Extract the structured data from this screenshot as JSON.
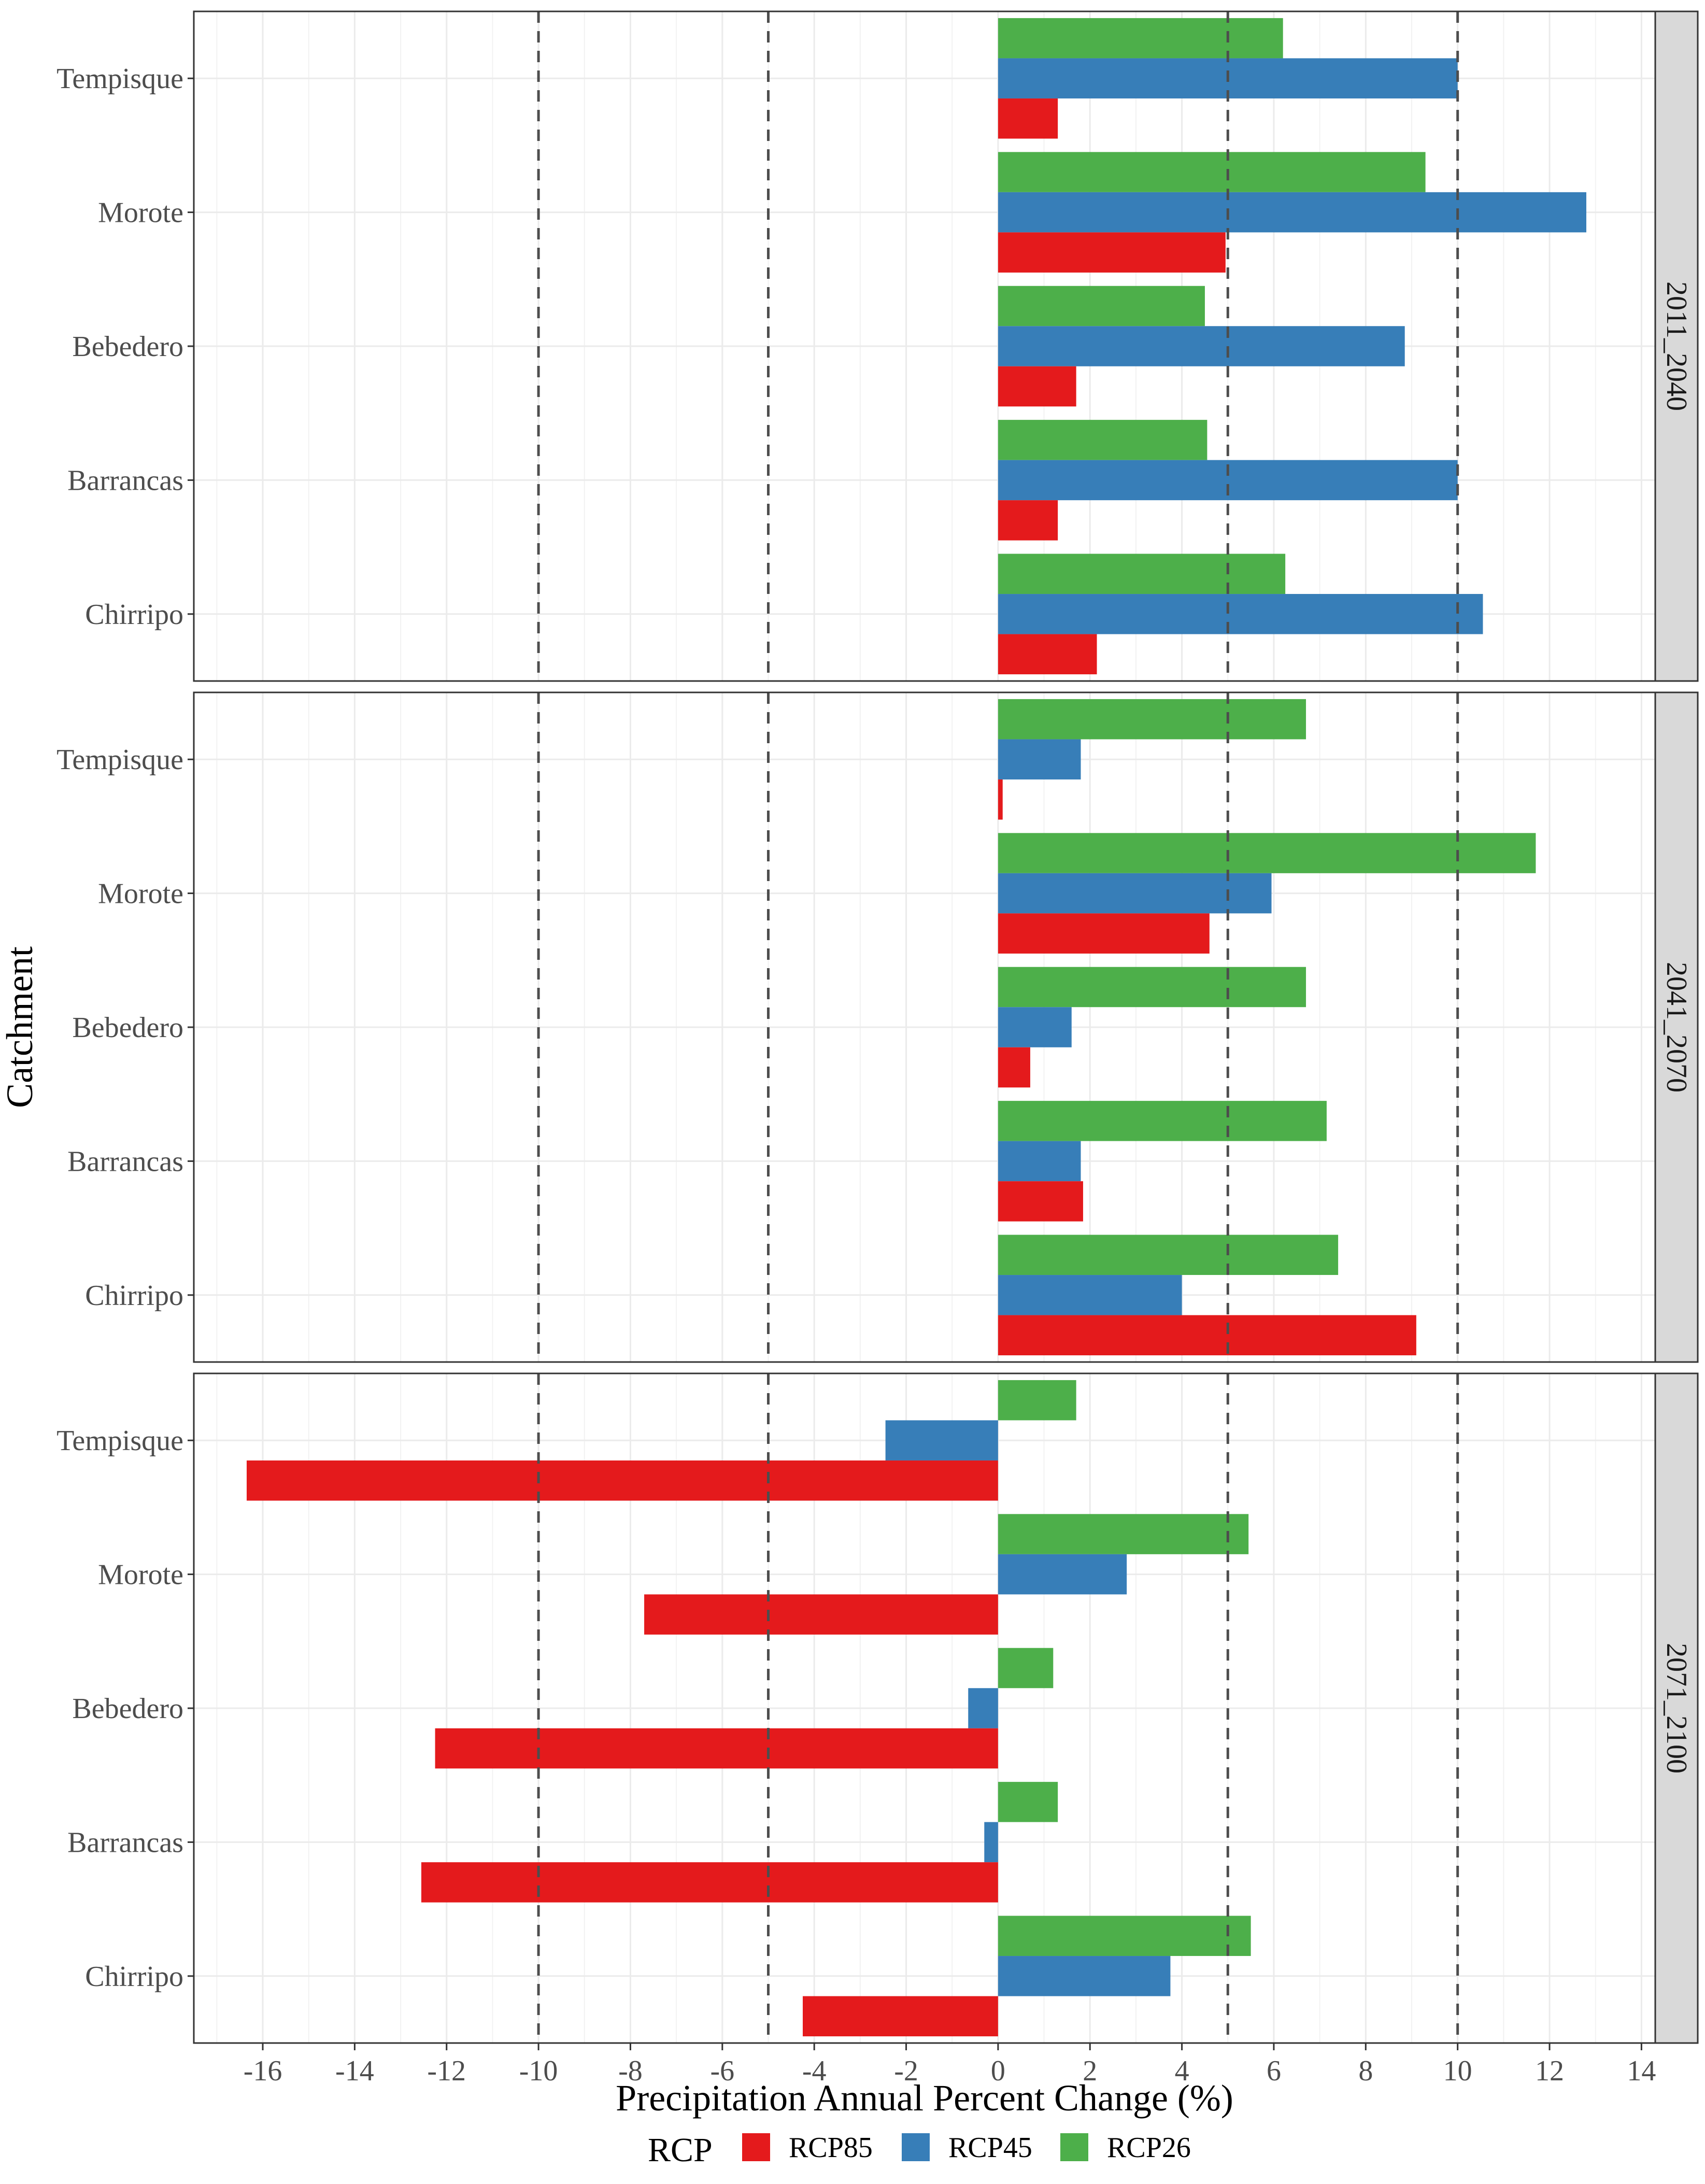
{
  "chart_data": {
    "type": "bar",
    "orientation": "horizontal",
    "title": "",
    "xlabel": "Precipitation Annual Percent Change (%)",
    "ylabel": "Catchment",
    "xlim": [
      -17.5,
      14.3
    ],
    "xticks": [
      -16,
      -14,
      -12,
      -10,
      -8,
      -6,
      -4,
      -2,
      0,
      2,
      4,
      6,
      8,
      10,
      12,
      14
    ],
    "reference_lines": [
      -10,
      -5,
      5,
      10
    ],
    "categories": [
      "Tempisque",
      "Morote",
      "Bebedero",
      "Barrancas",
      "Chirripo"
    ],
    "legend": {
      "title": "RCP",
      "position": "bottom",
      "entries": [
        {
          "name": "RCP85",
          "color": "#e41a1c"
        },
        {
          "name": "RCP45",
          "color": "#377eb8"
        },
        {
          "name": "RCP26",
          "color": "#4daf4a"
        }
      ]
    },
    "panels": [
      {
        "label": "2011_2040",
        "series": [
          {
            "name": "RCP26",
            "values": [
              6.2,
              9.3,
              4.5,
              4.55,
              6.25
            ]
          },
          {
            "name": "RCP45",
            "values": [
              10.0,
              12.8,
              8.85,
              10.0,
              10.55
            ]
          },
          {
            "name": "RCP85",
            "values": [
              1.3,
              4.95,
              1.7,
              1.3,
              2.15
            ]
          }
        ]
      },
      {
        "label": "2041_2070",
        "series": [
          {
            "name": "RCP26",
            "values": [
              6.7,
              11.7,
              6.7,
              7.15,
              7.4
            ]
          },
          {
            "name": "RCP45",
            "values": [
              1.8,
              5.95,
              1.6,
              1.8,
              4.0
            ]
          },
          {
            "name": "RCP85",
            "values": [
              0.1,
              4.6,
              0.7,
              1.85,
              9.1
            ]
          }
        ]
      },
      {
        "label": "2071_2100",
        "series": [
          {
            "name": "RCP26",
            "values": [
              1.7,
              5.45,
              1.2,
              1.3,
              5.5
            ]
          },
          {
            "name": "RCP45",
            "values": [
              -2.45,
              2.8,
              -0.65,
              -0.3,
              3.75
            ]
          },
          {
            "name": "RCP85",
            "values": [
              -16.35,
              -7.7,
              -12.25,
              -12.55,
              -4.25
            ]
          }
        ]
      }
    ]
  }
}
